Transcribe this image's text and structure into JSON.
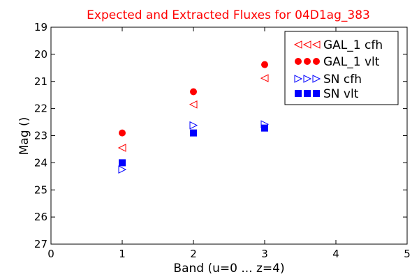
{
  "chart_data": {
    "type": "scatter",
    "title": "Expected and Extracted Fluxes for 04D1ag_383",
    "xlabel": "Band (u=0 ... z=4)",
    "ylabel": "Mag ()",
    "xlim": [
      0,
      5
    ],
    "ylim": [
      27,
      19
    ],
    "y_inverted": true,
    "x_ticks": [
      "0",
      "1",
      "2",
      "3",
      "4",
      "5"
    ],
    "y_ticks": [
      "19",
      "20",
      "21",
      "22",
      "23",
      "24",
      "25",
      "26",
      "27"
    ],
    "grid": false,
    "legend_position": "top-right",
    "series": [
      {
        "name": "GAL_1 cfh",
        "marker": "triangle-left",
        "filled": false,
        "color": "#ff0000",
        "x": [
          1,
          2,
          3
        ],
        "y": [
          23.45,
          21.85,
          20.88
        ]
      },
      {
        "name": "GAL_1 vlt",
        "marker": "circle",
        "filled": true,
        "color": "#ff0000",
        "x": [
          1,
          2,
          3
        ],
        "y": [
          22.9,
          21.38,
          20.38
        ]
      },
      {
        "name": "SN cfh",
        "marker": "triangle-right",
        "filled": false,
        "color": "#0000ff",
        "x": [
          1,
          2,
          3
        ],
        "y": [
          24.25,
          22.62,
          22.58
        ]
      },
      {
        "name": "SN vlt",
        "marker": "square",
        "filled": true,
        "color": "#0000ff",
        "x": [
          1,
          2,
          3
        ],
        "y": [
          24.0,
          22.9,
          22.72
        ]
      }
    ]
  }
}
